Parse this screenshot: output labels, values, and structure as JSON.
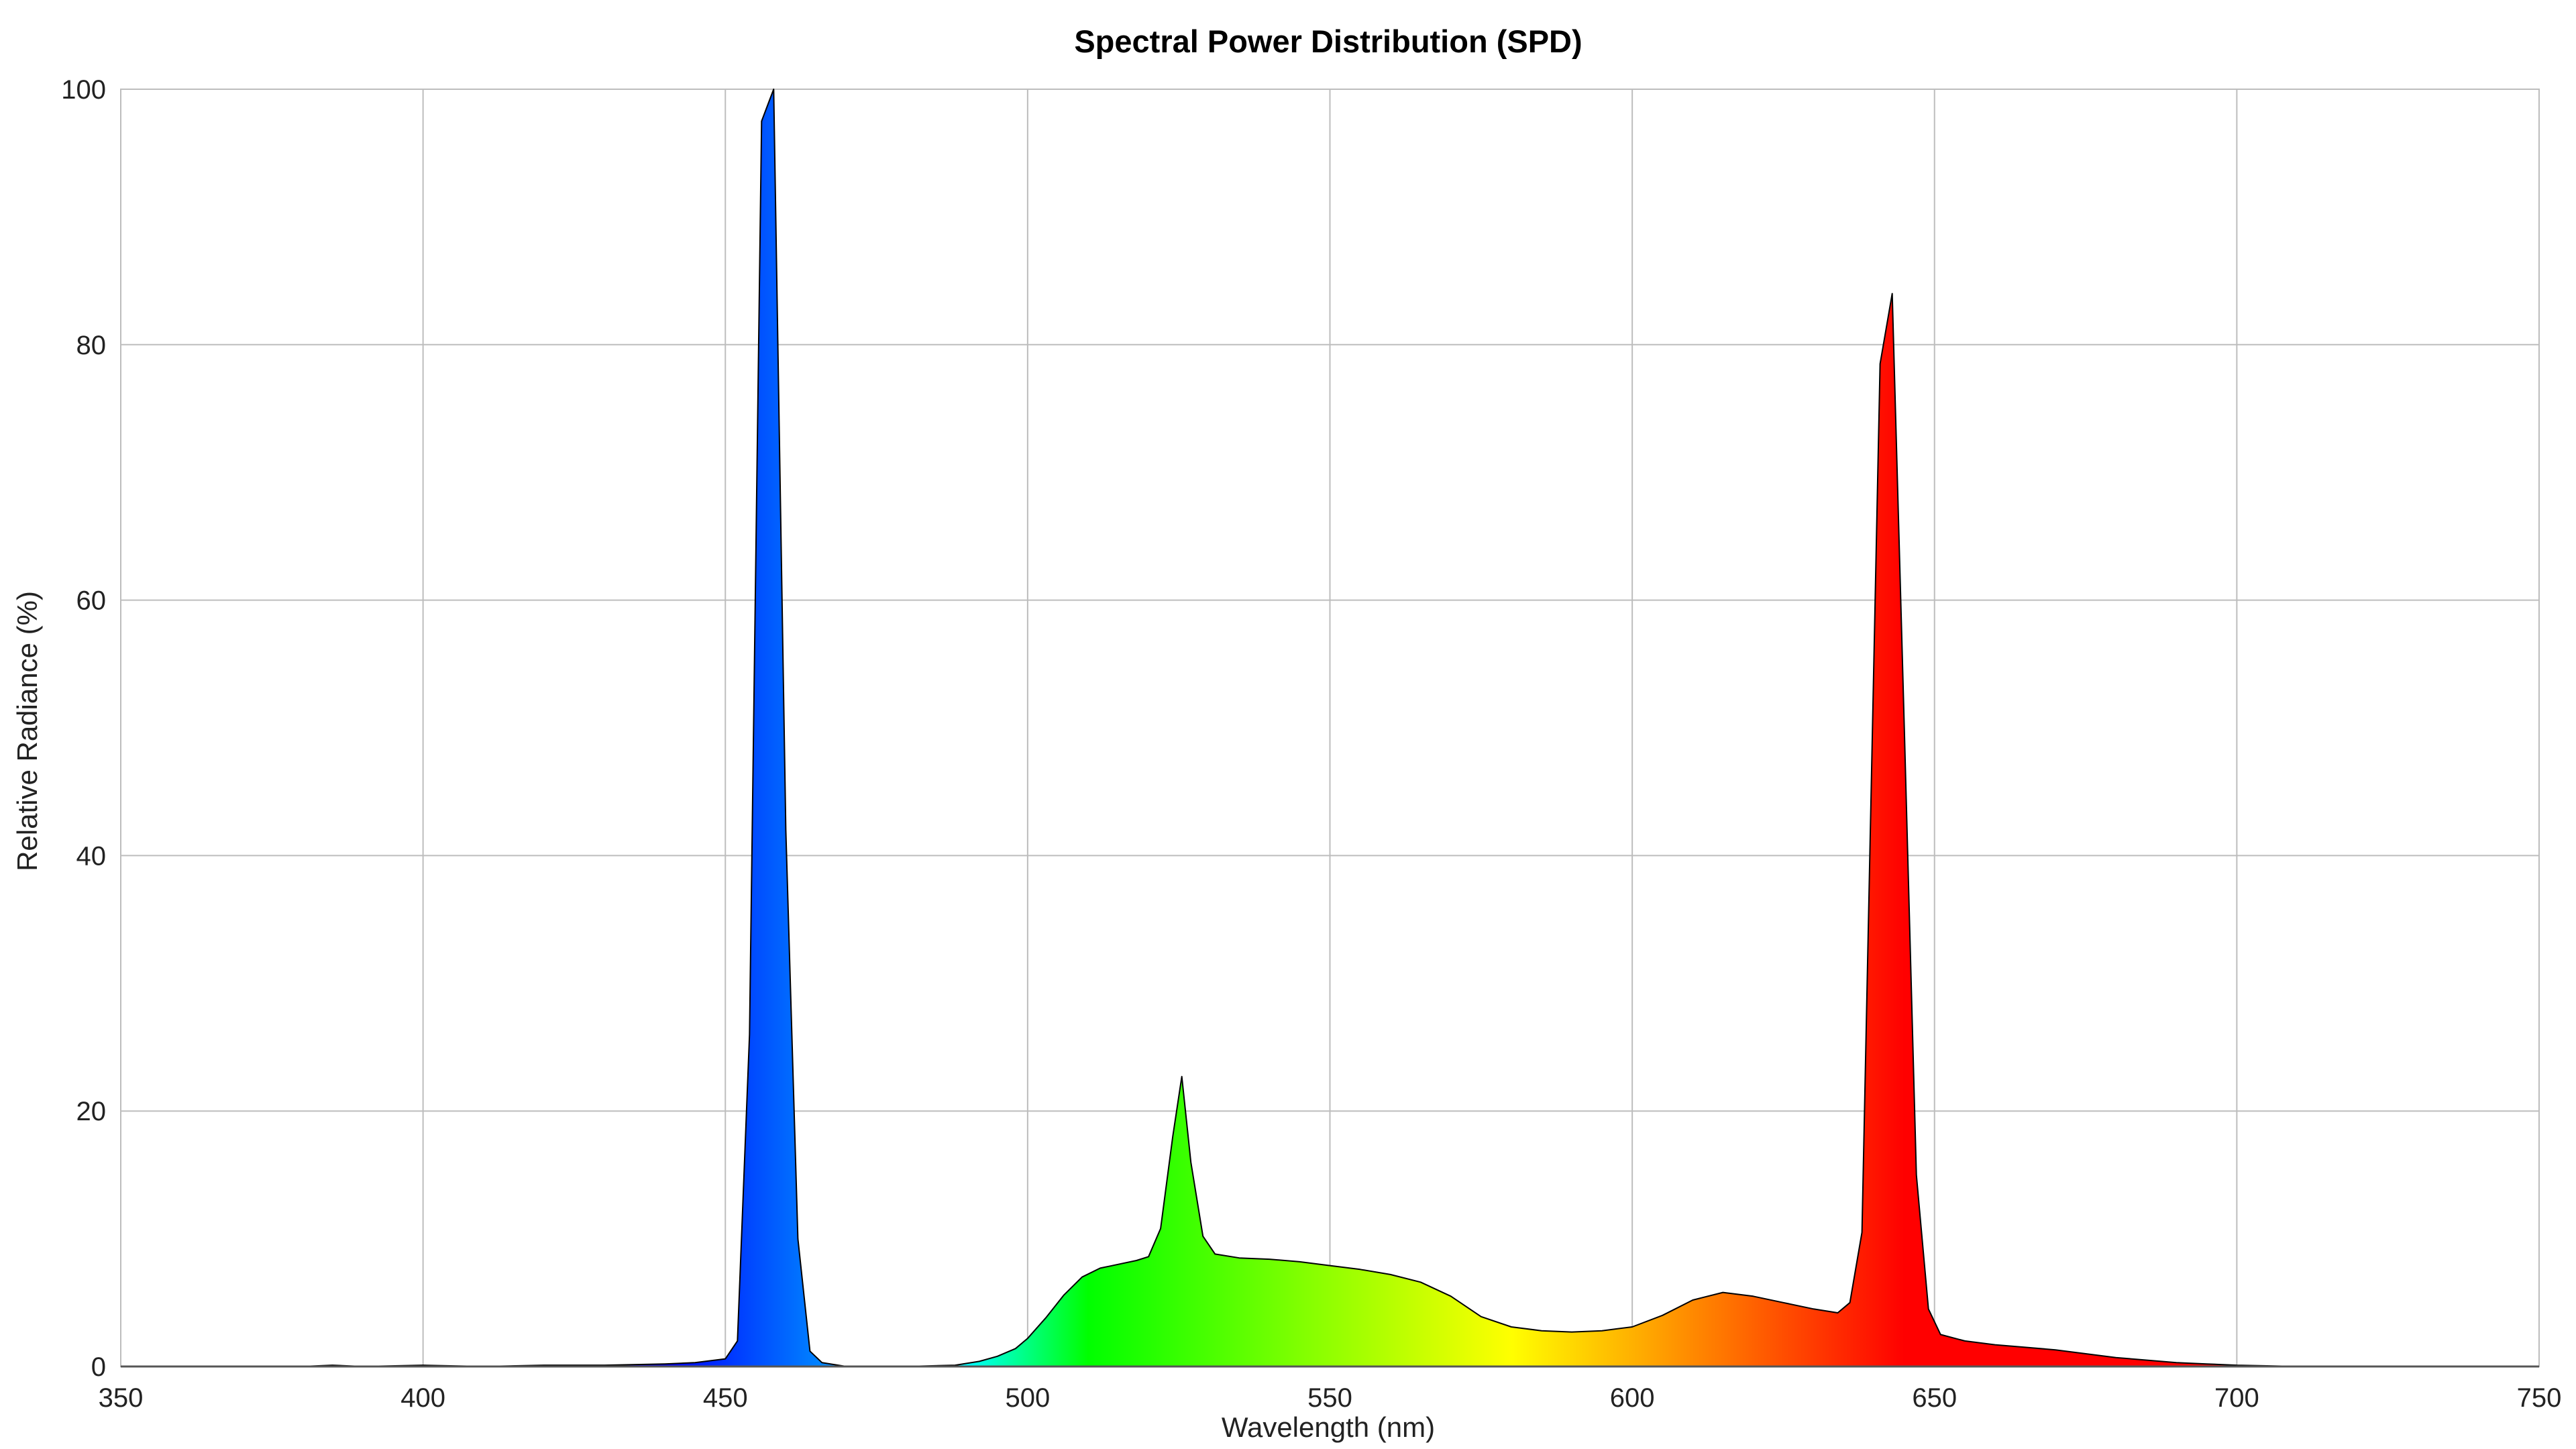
{
  "chart_data": {
    "type": "area",
    "title": "Spectral Power Distribution (SPD)",
    "xlabel": "Wavelength (nm)",
    "ylabel": "Relative Radiance (%)",
    "xlim": [
      350,
      750
    ],
    "ylim": [
      0,
      100
    ],
    "x_ticks": [
      "350",
      "400",
      "450",
      "500",
      "550",
      "600",
      "650",
      "700",
      "750"
    ],
    "y_ticks": [
      "0",
      "20",
      "40",
      "60",
      "80",
      "100"
    ],
    "grid": true,
    "fill": "visible-spectrum gradient by wavelength",
    "series": [
      {
        "points": [
          [
            350,
            0
          ],
          [
            380,
            0
          ],
          [
            385,
            0.1
          ],
          [
            390,
            0
          ],
          [
            400,
            0.1
          ],
          [
            410,
            0
          ],
          [
            420,
            0.1
          ],
          [
            430,
            0.1
          ],
          [
            440,
            0.2
          ],
          [
            445,
            0.3
          ],
          [
            450,
            0.6
          ],
          [
            452,
            2
          ],
          [
            454,
            26
          ],
          [
            456,
            97.5
          ],
          [
            458,
            100
          ],
          [
            460,
            42
          ],
          [
            462,
            10
          ],
          [
            464,
            1.2
          ],
          [
            466,
            0.3
          ],
          [
            470,
            0
          ],
          [
            480,
            0
          ],
          [
            488,
            0.1
          ],
          [
            492,
            0.4
          ],
          [
            495,
            0.8
          ],
          [
            498,
            1.4
          ],
          [
            500,
            2.2
          ],
          [
            503,
            3.8
          ],
          [
            506,
            5.6
          ],
          [
            509,
            7
          ],
          [
            512,
            7.7
          ],
          [
            515,
            8
          ],
          [
            518,
            8.3
          ],
          [
            520,
            8.6
          ],
          [
            522,
            10.8
          ],
          [
            524,
            18
          ],
          [
            525.5,
            22.7
          ],
          [
            527,
            16
          ],
          [
            529,
            10.2
          ],
          [
            531,
            8.8
          ],
          [
            535,
            8.5
          ],
          [
            540,
            8.4
          ],
          [
            545,
            8.2
          ],
          [
            550,
            7.9
          ],
          [
            555,
            7.6
          ],
          [
            560,
            7.2
          ],
          [
            565,
            6.6
          ],
          [
            570,
            5.5
          ],
          [
            575,
            3.9
          ],
          [
            580,
            3.1
          ],
          [
            585,
            2.8
          ],
          [
            590,
            2.7
          ],
          [
            595,
            2.8
          ],
          [
            600,
            3.1
          ],
          [
            605,
            4
          ],
          [
            610,
            5.2
          ],
          [
            615,
            5.8
          ],
          [
            620,
            5.5
          ],
          [
            625,
            5.0
          ],
          [
            630,
            4.5
          ],
          [
            634,
            4.2
          ],
          [
            636,
            5
          ],
          [
            638,
            10.5
          ],
          [
            641,
            78.5
          ],
          [
            643,
            84
          ],
          [
            645,
            50
          ],
          [
            647,
            15
          ],
          [
            649,
            4.5
          ],
          [
            651,
            2.5
          ],
          [
            655,
            2
          ],
          [
            660,
            1.7
          ],
          [
            665,
            1.5
          ],
          [
            670,
            1.3
          ],
          [
            675,
            1
          ],
          [
            680,
            0.7
          ],
          [
            685,
            0.5
          ],
          [
            690,
            0.3
          ],
          [
            695,
            0.2
          ],
          [
            700,
            0.1
          ],
          [
            705,
            0.05
          ],
          [
            710,
            0
          ],
          [
            750,
            0
          ]
        ]
      }
    ]
  }
}
